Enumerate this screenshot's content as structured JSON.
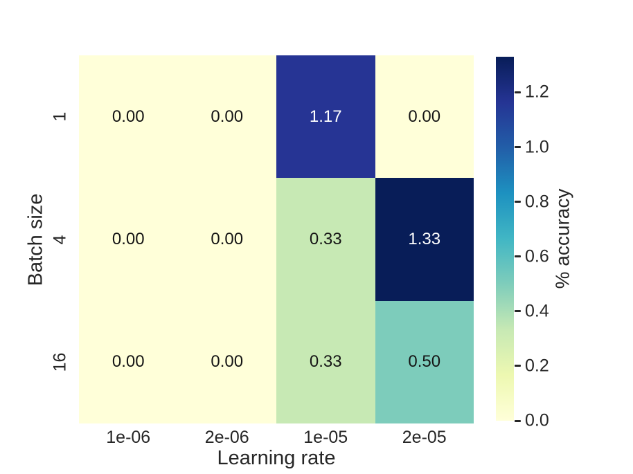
{
  "chart_data": {
    "type": "heatmap",
    "xlabel": "Learning rate",
    "ylabel": "Batch size",
    "x_categories": [
      "1e-06",
      "2e-06",
      "1e-05",
      "2e-05"
    ],
    "y_categories": [
      "1",
      "4",
      "16"
    ],
    "values": [
      [
        0.0,
        0.0,
        1.17,
        0.0
      ],
      [
        0.0,
        0.0,
        0.33,
        1.33
      ],
      [
        0.0,
        0.0,
        0.33,
        0.5
      ]
    ],
    "cell_labels": [
      [
        "0.00",
        "0.00",
        "1.17",
        "0.00"
      ],
      [
        "0.00",
        "0.00",
        "0.33",
        "1.33"
      ],
      [
        "0.00",
        "0.00",
        "0.33",
        "0.50"
      ]
    ],
    "cell_colors": [
      [
        "#ffffd9",
        "#ffffd9",
        "#263494",
        "#ffffd9"
      ],
      [
        "#ffffd9",
        "#ffffd9",
        "#c7e9b4",
        "#081d58"
      ],
      [
        "#ffffd9",
        "#ffffd9",
        "#c7e9b4",
        "#7dccbb"
      ]
    ],
    "annotation_colors": {
      "dark": "#151515",
      "light": "#ffffff"
    },
    "colorbar": {
      "label": "% accuracy",
      "vmin": 0.0,
      "vmax": 1.33,
      "ticks": [
        "0.0",
        "0.2",
        "0.4",
        "0.6",
        "0.8",
        "1.0",
        "1.2"
      ],
      "colormap": "YlGnBu",
      "gradient_stops_bottom_to_top": [
        "#ffffd9",
        "#edf8b1",
        "#c7e9b4",
        "#7fcdbb",
        "#41b6c4",
        "#1d91c0",
        "#225ea8",
        "#253494",
        "#081d58"
      ]
    },
    "text_color": "#262626",
    "grid": false,
    "legend_position": "right-colorbar"
  }
}
